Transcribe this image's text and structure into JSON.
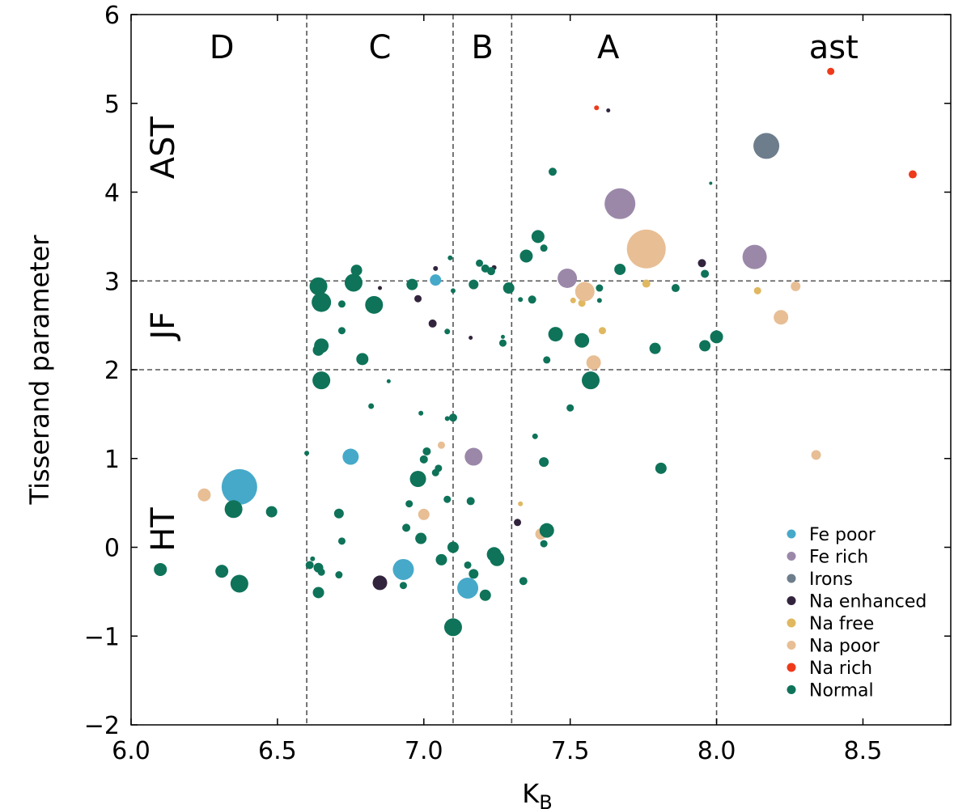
{
  "chart_data": {
    "type": "scatter",
    "xlabel": "K",
    "xlabel_sub": "B",
    "ylabel": "Tisserand parameter",
    "xlim": [
      6.0,
      8.8
    ],
    "ylim": [
      -2,
      6
    ],
    "xticks": [
      6.0,
      6.5,
      7.0,
      7.5,
      8.0,
      8.5
    ],
    "xtick_labels": [
      "6.0",
      "6.5",
      "7.0",
      "7.5",
      "8.0",
      "8.5"
    ],
    "yticks": [
      -2,
      -1,
      0,
      1,
      2,
      3,
      4,
      5,
      6
    ],
    "ytick_labels": [
      "−2",
      "−1",
      "0",
      "1",
      "2",
      "3",
      "4",
      "5",
      "6"
    ],
    "vlines": [
      6.6,
      7.1,
      7.3,
      8.0
    ],
    "hlines": [
      2,
      3
    ],
    "region_labels_top": [
      {
        "text": "D",
        "x": 6.31
      },
      {
        "text": "C",
        "x": 6.85
      },
      {
        "text": "B",
        "x": 7.2
      },
      {
        "text": "A",
        "x": 7.63
      },
      {
        "text": "ast",
        "x": 8.4
      }
    ],
    "region_labels_side": [
      {
        "text": "AST",
        "y": 4.5
      },
      {
        "text": "JF",
        "y": 2.5
      },
      {
        "text": "HT",
        "y": 0.2
      }
    ],
    "legend_position": "lower-right",
    "series": [
      {
        "name": "Fe poor",
        "color": "#46a9c9",
        "points": [
          [
            6.37,
            0.68,
            22
          ],
          [
            7.04,
            3.01,
            7
          ],
          [
            6.75,
            1.02,
            10
          ],
          [
            6.93,
            -0.25,
            13
          ],
          [
            7.15,
            -0.46,
            13
          ]
        ]
      },
      {
        "name": "Fe rich",
        "color": "#9b88a9",
        "points": [
          [
            7.67,
            3.87,
            19
          ],
          [
            8.13,
            3.27,
            15
          ],
          [
            7.49,
            3.03,
            12
          ],
          [
            7.17,
            1.02,
            11
          ]
        ]
      },
      {
        "name": "Irons",
        "color": "#6d7d8c",
        "points": [
          [
            8.17,
            4.52,
            16
          ]
        ]
      },
      {
        "name": "Na enhanced",
        "color": "#33243e",
        "points": [
          [
            7.63,
            4.92,
            2.5
          ],
          [
            7.95,
            3.2,
            5
          ],
          [
            7.04,
            3.14,
            3
          ],
          [
            7.24,
            3.15,
            3
          ],
          [
            6.85,
            2.92,
            2.5
          ],
          [
            6.98,
            2.8,
            4.5
          ],
          [
            7.03,
            2.52,
            5
          ],
          [
            7.16,
            2.36,
            2.5
          ],
          [
            7.32,
            0.28,
            4.5
          ],
          [
            6.85,
            -0.4,
            9
          ]
        ]
      },
      {
        "name": "Na free",
        "color": "#e0b860",
        "points": [
          [
            7.76,
            2.97,
            5
          ],
          [
            8.14,
            2.89,
            4.5
          ],
          [
            7.61,
            2.44,
            4.5
          ],
          [
            7.54,
            2.75,
            4.5
          ],
          [
            7.51,
            2.78,
            3.5
          ],
          [
            7.33,
            0.49,
            3
          ]
        ]
      },
      {
        "name": "Na poor",
        "color": "#e8be94",
        "points": [
          [
            7.76,
            3.36,
            24
          ],
          [
            7.55,
            2.88,
            12
          ],
          [
            8.22,
            2.59,
            9
          ],
          [
            8.27,
            2.94,
            6
          ],
          [
            7.58,
            2.08,
            9
          ],
          [
            8.34,
            1.04,
            6
          ],
          [
            7.06,
            1.15,
            4.5
          ],
          [
            7.0,
            0.37,
            7
          ],
          [
            6.25,
            0.59,
            8
          ],
          [
            7.4,
            0.15,
            7
          ]
        ]
      },
      {
        "name": "Na rich",
        "color": "#ee3a1a",
        "points": [
          [
            7.59,
            4.95,
            3
          ],
          [
            8.39,
            5.36,
            4.5
          ],
          [
            8.67,
            4.2,
            5
          ]
        ]
      },
      {
        "name": "Normal",
        "color": "#0e7359",
        "points": [
          [
            7.44,
            4.23,
            5
          ],
          [
            7.98,
            4.1,
            2
          ],
          [
            7.39,
            3.5,
            8
          ],
          [
            7.41,
            3.37,
            4.5
          ],
          [
            7.35,
            3.28,
            8
          ],
          [
            7.67,
            3.13,
            7
          ],
          [
            7.96,
            3.08,
            5
          ],
          [
            7.86,
            2.92,
            5
          ],
          [
            7.6,
            2.92,
            4.5
          ],
          [
            7.6,
            2.78,
            3
          ],
          [
            6.64,
            2.94,
            11
          ],
          [
            6.76,
            2.98,
            11
          ],
          [
            6.77,
            3.12,
            7
          ],
          [
            6.65,
            2.76,
            12
          ],
          [
            6.72,
            2.74,
            4.5
          ],
          [
            6.83,
            2.73,
            11
          ],
          [
            6.96,
            2.96,
            7
          ],
          [
            7.09,
            3.26,
            3
          ],
          [
            7.1,
            2.89,
            3
          ],
          [
            7.17,
            2.96,
            6
          ],
          [
            7.19,
            3.2,
            4.5
          ],
          [
            7.21,
            3.14,
            5
          ],
          [
            7.23,
            3.11,
            5
          ],
          [
            7.29,
            2.92,
            7
          ],
          [
            7.33,
            2.79,
            3
          ],
          [
            7.37,
            2.79,
            5
          ],
          [
            6.72,
            2.44,
            4.5
          ],
          [
            6.65,
            2.27,
            9
          ],
          [
            6.64,
            2.22,
            7
          ],
          [
            6.79,
            2.12,
            7.5
          ],
          [
            6.65,
            1.88,
            11
          ],
          [
            6.88,
            1.87,
            2.5
          ],
          [
            7.08,
            2.43,
            3.5
          ],
          [
            7.27,
            2.37,
            2.5
          ],
          [
            7.27,
            2.3,
            4.5
          ],
          [
            7.45,
            2.4,
            9
          ],
          [
            7.54,
            2.33,
            9
          ],
          [
            7.42,
            2.11,
            4.5
          ],
          [
            7.57,
            1.88,
            11
          ],
          [
            7.79,
            2.24,
            7
          ],
          [
            7.96,
            2.27,
            7
          ],
          [
            8.0,
            2.37,
            8
          ],
          [
            7.5,
            1.57,
            4.5
          ],
          [
            6.82,
            1.59,
            3.5
          ],
          [
            6.99,
            1.51,
            3
          ],
          [
            7.1,
            1.46,
            5
          ],
          [
            7.08,
            1.45,
            3
          ],
          [
            7.38,
            1.25,
            3.5
          ],
          [
            6.6,
            1.06,
            3
          ],
          [
            7.01,
            1.08,
            5
          ],
          [
            7.05,
            0.89,
            4.5
          ],
          [
            7.0,
            0.99,
            5
          ],
          [
            6.98,
            0.77,
            10
          ],
          [
            7.04,
            0.84,
            4.5
          ],
          [
            7.41,
            0.96,
            6
          ],
          [
            7.81,
            0.89,
            7
          ],
          [
            6.95,
            0.49,
            4.5
          ],
          [
            7.08,
            0.54,
            4.5
          ],
          [
            7.16,
            0.52,
            5
          ],
          [
            6.35,
            0.43,
            11
          ],
          [
            6.48,
            0.4,
            7
          ],
          [
            6.71,
            0.38,
            6
          ],
          [
            6.94,
            0.22,
            5
          ],
          [
            6.99,
            0.1,
            7
          ],
          [
            6.72,
            0.07,
            4.5
          ],
          [
            7.42,
            0.19,
            9
          ],
          [
            7.41,
            0.04,
            4.5
          ],
          [
            7.1,
            0.0,
            7
          ],
          [
            7.06,
            -0.14,
            7
          ],
          [
            7.24,
            -0.08,
            9
          ],
          [
            7.25,
            -0.13,
            9
          ],
          [
            6.62,
            -0.13,
            3
          ],
          [
            6.61,
            -0.2,
            5
          ],
          [
            6.64,
            -0.23,
            6
          ],
          [
            6.65,
            -0.28,
            4.5
          ],
          [
            6.71,
            -0.31,
            4.5
          ],
          [
            6.31,
            -0.27,
            8
          ],
          [
            6.1,
            -0.25,
            8
          ],
          [
            6.37,
            -0.41,
            11
          ],
          [
            6.93,
            -0.43,
            4.5
          ],
          [
            7.15,
            -0.2,
            4.5
          ],
          [
            7.17,
            -0.3,
            6
          ],
          [
            7.34,
            -0.38,
            5
          ],
          [
            6.64,
            -0.51,
            7
          ],
          [
            7.21,
            -0.54,
            7
          ],
          [
            7.1,
            -0.9,
            11
          ]
        ]
      }
    ]
  }
}
